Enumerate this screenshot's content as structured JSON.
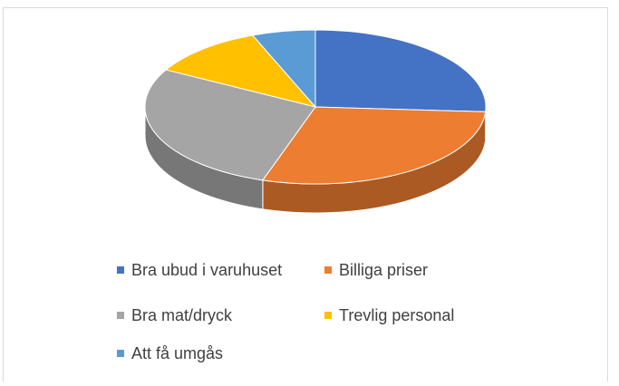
{
  "chart_data": {
    "type": "pie",
    "categories": [
      "Bra ubud i varuhuset",
      "Billiga priser",
      "Bra mat/dryck",
      "Trevlig personal",
      "Att få umgås"
    ],
    "values": [
      26,
      29,
      28,
      11,
      6
    ],
    "colors": [
      "#4472c4",
      "#ed7d31",
      "#a5a5a5",
      "#ffc000",
      "#5b9bd5"
    ],
    "legend": "bottom"
  }
}
